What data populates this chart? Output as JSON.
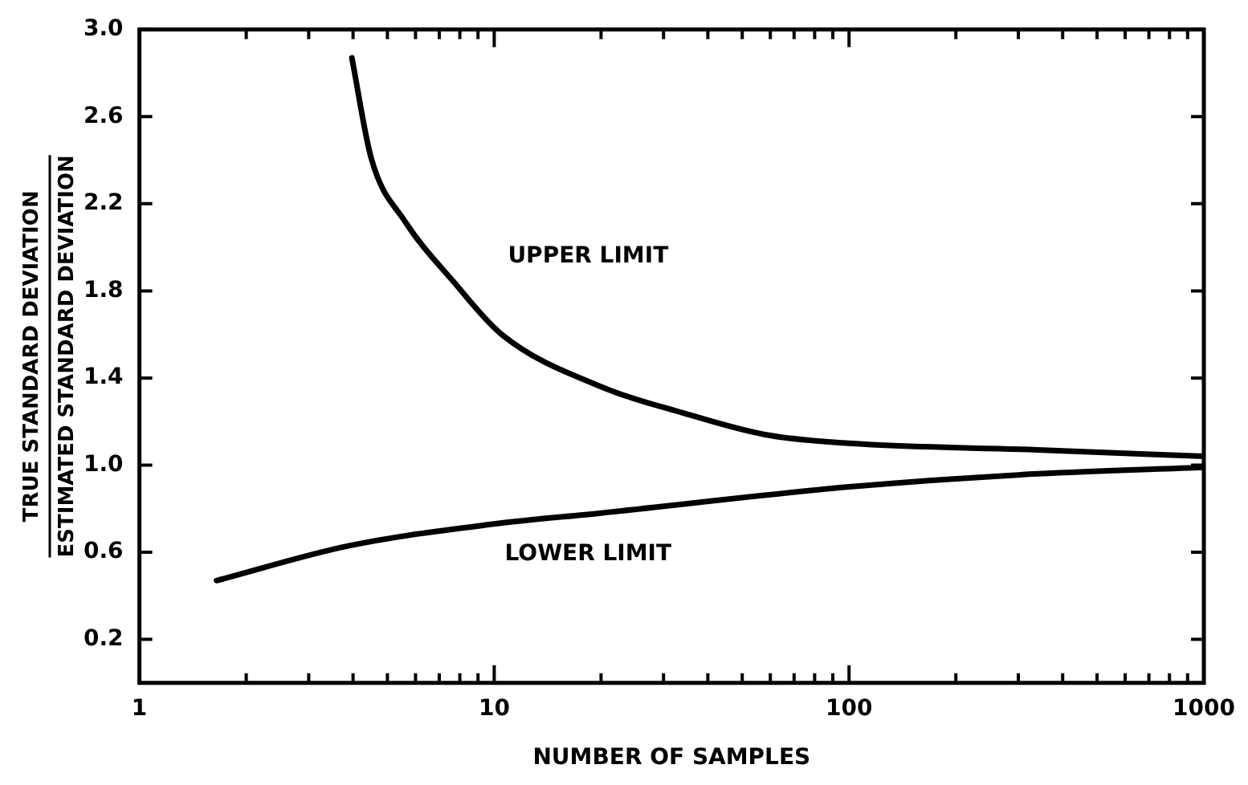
{
  "chart_data": {
    "type": "line",
    "xlabel": "NUMBER OF SAMPLES",
    "ylabel": "TRUE STANDARD DEVIATION\nESTIMATED STANDARD DEVIATION",
    "log": "x",
    "xlim": [
      1,
      1000
    ],
    "xticks": [
      1,
      {
        "value": 2,
        "label": null
      },
      {
        "value": 3,
        "label": null
      },
      {
        "value": 4,
        "label": null
      },
      {
        "value": 5,
        "label": null
      },
      {
        "value": 6,
        "label": null
      },
      {
        "value": 7,
        "label": null
      },
      {
        "value": 8,
        "label": null
      },
      {
        "value": 9,
        "label": null
      },
      10,
      {
        "value": 20,
        "label": null
      },
      {
        "value": 30,
        "label": null
      },
      {
        "value": 40,
        "label": null
      },
      {
        "value": 50,
        "label": null
      },
      {
        "value": 60,
        "label": null
      },
      {
        "value": 70,
        "label": null
      },
      {
        "value": 80,
        "label": null
      },
      {
        "value": 90,
        "label": null
      },
      100,
      {
        "value": 200,
        "label": null
      },
      {
        "value": 300,
        "label": null
      },
      {
        "value": 400,
        "label": null
      },
      {
        "value": 500,
        "label": null
      },
      {
        "value": 600,
        "label": null
      },
      {
        "value": 700,
        "label": null
      },
      {
        "value": 800,
        "label": null
      },
      {
        "value": 900,
        "label": null
      },
      1000
    ],
    "ylim": [
      0,
      3
    ],
    "yticks": [
      {
        "value": 0.2,
        "label": "0.2"
      },
      {
        "value": 0.6,
        "label": "0.6"
      },
      {
        "value": 1.0,
        "label": "1.0"
      },
      {
        "value": 1.4,
        "label": "1.4"
      },
      {
        "value": 1.8,
        "label": "1.8"
      },
      {
        "value": 2.2,
        "label": "2.2"
      },
      {
        "value": 2.6,
        "label": "2.6"
      },
      {
        "value": 3.0,
        "label": "3.0"
      }
    ],
    "grid": false,
    "legend": false,
    "marker": "none",
    "line_style": "solid",
    "series": [
      {
        "name": "UPPER LIMIT",
        "color": "#000000",
        "x": [
          3.97,
          4.5,
          5.6,
          7.7,
          10.5,
          20,
          34,
          58,
          100,
          340,
          1000
        ],
        "values": [
          2.87,
          2.41,
          2.12,
          1.84,
          1.6,
          1.36,
          1.24,
          1.14,
          1.1,
          1.07,
          1.04
        ]
      },
      {
        "name": "LOWER LIMIT",
        "color": "#000000",
        "x": [
          1.65,
          3.9,
          10,
          20,
          100,
          340,
          1000
        ],
        "values": [
          0.47,
          0.63,
          0.73,
          0.78,
          0.9,
          0.96,
          0.99
        ]
      }
    ]
  }
}
